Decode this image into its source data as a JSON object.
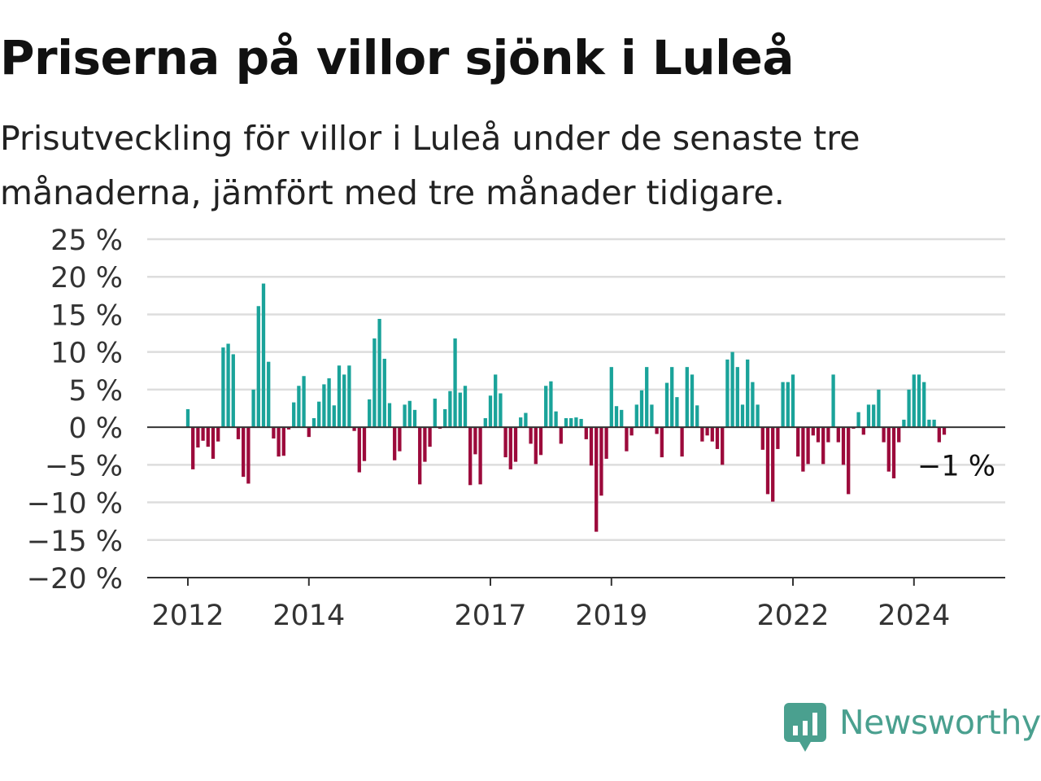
{
  "title": "Priserna på villor sjönk i Luleå",
  "subtitle": "Prisutveckling för villor i Luleå under de senaste tre månaderna, jämfört med tre månader tidigare.",
  "logo": {
    "name": "newsworthy-logo",
    "text": "Newsworthy"
  },
  "colors": {
    "positive": "#1aa39a",
    "negative": "#9c0a3b",
    "grid": "#dddddd",
    "axis": "#333333",
    "logo": "#4aa08f"
  },
  "chart_data": {
    "type": "bar",
    "title": "Priserna på villor sjönk i Luleå",
    "subtitle": "Prisutveckling för villor i Luleå under de senaste tre månaderna, jämfört med tre månader tidigare.",
    "xlabel": "",
    "ylabel": "",
    "unit": "%",
    "ylim": [
      -20,
      25
    ],
    "yticks": [
      25,
      20,
      15,
      10,
      5,
      0,
      -5,
      -10,
      -15,
      -20
    ],
    "ytick_labels": [
      "25 %",
      "20 %",
      "15 %",
      "10 %",
      "5 %",
      "0 %",
      "−5 %",
      "−10 %",
      "−15 %",
      "−20 %"
    ],
    "xticks": [
      2012,
      2014,
      2017,
      2019,
      2022,
      2024
    ],
    "xtick_labels": [
      "2012",
      "2014",
      "2017",
      "2019",
      "2022",
      "2024"
    ],
    "grid": true,
    "legend": "none",
    "start": "2012-01",
    "frequency": "monthly",
    "values": [
      2.4,
      -5.6,
      -2.7,
      -1.8,
      -2.6,
      -4.2,
      -1.9,
      10.6,
      11.1,
      9.7,
      -1.6,
      -6.6,
      -7.5,
      5.0,
      16.1,
      19.1,
      8.7,
      -1.5,
      -3.9,
      -3.8,
      -0.3,
      3.3,
      5.5,
      6.8,
      -1.3,
      1.2,
      3.4,
      5.7,
      6.5,
      2.9,
      8.2,
      7.0,
      8.2,
      -0.5,
      -6.0,
      -4.5,
      3.7,
      11.8,
      14.4,
      9.1,
      3.2,
      -4.4,
      -3.2,
      3.0,
      3.5,
      2.3,
      -7.6,
      -4.6,
      -2.6,
      3.8,
      -0.2,
      2.4,
      4.8,
      11.8,
      4.6,
      5.5,
      -7.7,
      -3.6,
      -7.6,
      1.2,
      4.2,
      7.0,
      4.5,
      -4.0,
      -5.6,
      -4.6,
      1.3,
      1.9,
      -2.2,
      -4.9,
      -3.7,
      5.5,
      6.1,
      2.1,
      -2.2,
      1.2,
      1.2,
      1.3,
      1.1,
      -1.6,
      -5.1,
      -13.9,
      -9.1,
      -4.2,
      8.0,
      2.8,
      2.3,
      -3.2,
      -1.1,
      3.0,
      4.9,
      8.0,
      3.0,
      -0.9,
      -4.0,
      5.9,
      8.0,
      4.0,
      -3.9,
      8.0,
      7.0,
      2.9,
      -1.9,
      -1.1,
      -1.9,
      -2.9,
      -5.0,
      9.0,
      10.0,
      8.0,
      3.0,
      9.0,
      6.0,
      3.0,
      -3.0,
      -8.9,
      -9.9,
      -2.9,
      6.0,
      6.0,
      7.0,
      -3.9,
      -5.9,
      -4.9,
      -1.1,
      -2.0,
      -4.9,
      -2.0,
      7.0,
      -2.0,
      -5.0,
      -8.9,
      -0.2,
      2.0,
      -1.0,
      3.0,
      3.0,
      5.0,
      -2.0,
      -5.9,
      -6.8,
      -2.0,
      1.0,
      5.0,
      7.0,
      7.0,
      6.0,
      1.0,
      1.0,
      -2.0,
      -1.0
    ],
    "annotation": {
      "label": "−1 %",
      "value": -1.0
    }
  }
}
